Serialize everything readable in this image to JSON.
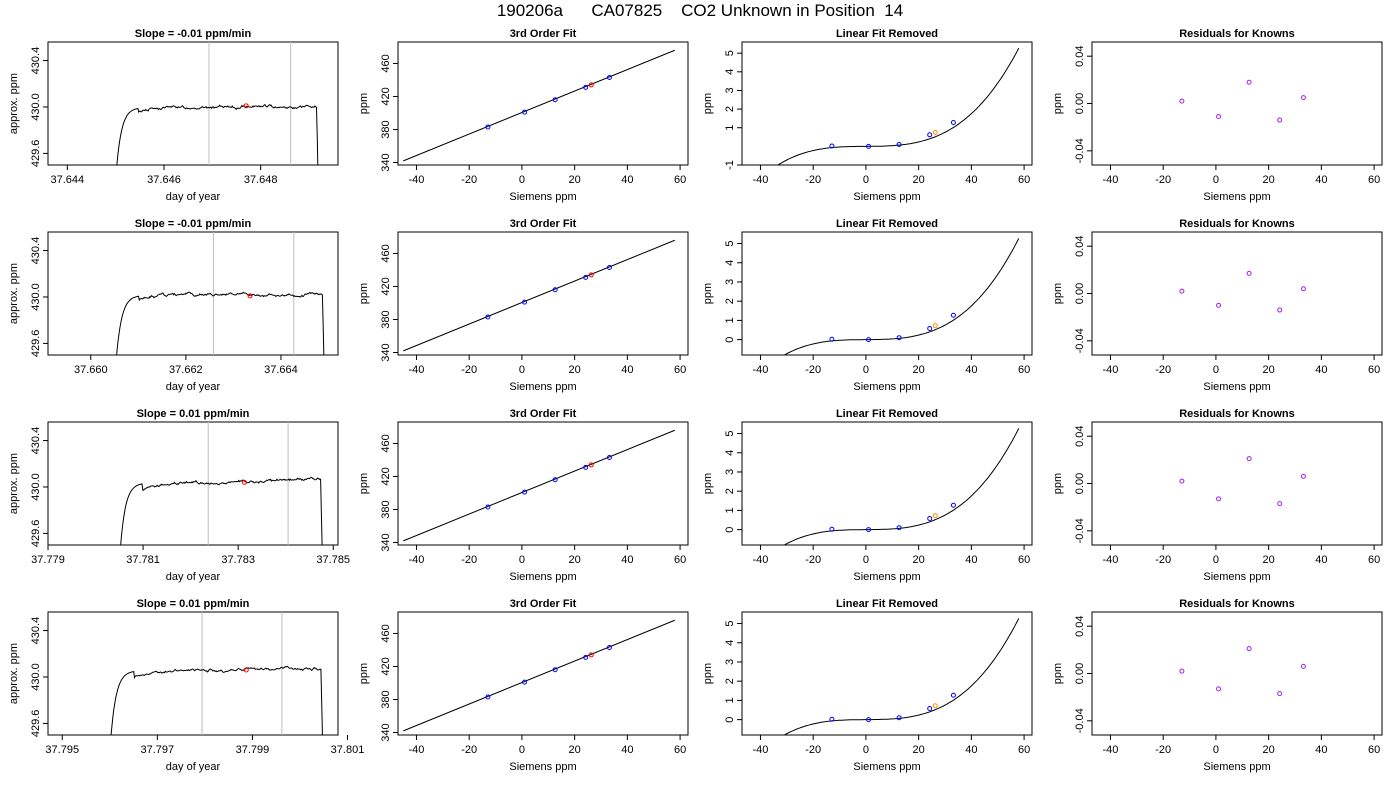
{
  "title": "190206a      CA07825    CO2 Unknown in Position  14",
  "colors": {
    "line": "#000000",
    "vline": "#bebebe",
    "known": "#0000ff",
    "unknown": "#ff0000",
    "fit_unknown": "#ff8c00",
    "residual": "#a020f0"
  },
  "chart_data": [
    {
      "type": "line",
      "row": 0,
      "col": 0,
      "title": "Slope =  -0.01  ppm/min",
      "xlabel": "day of year",
      "ylabel": "approx. ppm",
      "xlim": [
        37.6436,
        37.6496
      ],
      "ylim": [
        429.5,
        430.56
      ],
      "xticks": [
        37.644,
        37.646,
        37.648
      ],
      "xticklabels": [
        "37.644",
        "37.646",
        "37.648"
      ],
      "yticks": [
        429.6,
        430.0,
        430.4
      ],
      "yticklabels": [
        "429.6",
        "430.0",
        "430.4"
      ],
      "trace": {
        "x0": 37.64495,
        "x1": 37.64922,
        "base": 430.0,
        "tilt": 0.0
      },
      "vlines": [
        37.64693,
        37.64862
      ],
      "marker": {
        "x": 37.6477,
        "y": 430.01
      }
    },
    {
      "type": "line",
      "row": 0,
      "col": 1,
      "title": "3rd Order Fit",
      "xlabel": "Siemens ppm",
      "ylabel": "ppm",
      "xlim": [
        -47,
        63
      ],
      "ylim": [
        337,
        486
      ],
      "xticks": [
        -40,
        -20,
        0,
        20,
        40,
        60
      ],
      "xticklabels": [
        "-40",
        "-20",
        "0",
        "20",
        "40",
        "60"
      ],
      "yticks": [
        340,
        380,
        420,
        460
      ],
      "yticklabels": [
        "340",
        "380",
        "420",
        "460"
      ],
      "line": {
        "x0": -45,
        "y0": 342,
        "x1": 58,
        "y1": 476
      },
      "points": [
        {
          "x": -12.9,
          "y": 383
        },
        {
          "x": 1.0,
          "y": 401
        },
        {
          "x": 12.6,
          "y": 416
        },
        {
          "x": 24.2,
          "y": 431
        },
        {
          "x": 33.2,
          "y": 443
        }
      ],
      "unknown": {
        "x": 26.3,
        "y": 434
      }
    },
    {
      "type": "curve",
      "row": 0,
      "col": 2,
      "title": "Linear Fit Removed",
      "xlabel": "Siemens ppm",
      "ylabel": "ppm",
      "xlim": [
        -47,
        63
      ],
      "ylim": [
        -1.0,
        5.6
      ],
      "xticks": [
        -40,
        -20,
        0,
        20,
        40,
        60
      ],
      "xticklabels": [
        "-40",
        "-20",
        "0",
        "20",
        "40",
        "60"
      ],
      "yticks": [
        -1,
        1,
        2,
        3,
        4,
        5
      ],
      "yticklabels": [
        "-1",
        "1",
        "2",
        "3",
        "4",
        "5"
      ],
      "curve": {
        "x0": -43,
        "x1": 58,
        "a": 0.0009,
        "b": 1.42e-05,
        "c": 2.65e-05
      },
      "points": [
        {
          "x": -12.9,
          "y": 0.02
        },
        {
          "x": 1.0,
          "y": 0.0
        },
        {
          "x": 12.6,
          "y": 0.1
        },
        {
          "x": 24.2,
          "y": 0.62
        },
        {
          "x": 33.2,
          "y": 1.28
        }
      ],
      "unknown": {
        "x": 26.3,
        "y": 0.75
      }
    },
    {
      "type": "scatter",
      "row": 0,
      "col": 3,
      "title": "Residuals for Knowns",
      "xlabel": "Siemens ppm",
      "ylabel": "ppm",
      "xlim": [
        -47,
        63
      ],
      "ylim": [
        -0.052,
        0.052
      ],
      "xticks": [
        -40,
        -20,
        0,
        20,
        40,
        60
      ],
      "xticklabels": [
        "-40",
        "-20",
        "0",
        "20",
        "40",
        "60"
      ],
      "yticks": [
        -0.04,
        0.0,
        0.04
      ],
      "yticklabels": [
        "-0.04",
        "0.00",
        "0.04"
      ],
      "points": [
        {
          "x": -12.9,
          "y": 0.002
        },
        {
          "x": 1.0,
          "y": -0.011
        },
        {
          "x": 12.6,
          "y": 0.018
        },
        {
          "x": 24.2,
          "y": -0.014
        },
        {
          "x": 33.2,
          "y": 0.005
        }
      ]
    },
    {
      "type": "line",
      "row": 1,
      "col": 0,
      "title": "Slope =  -0.01  ppm/min",
      "xlabel": "day of year",
      "ylabel": "approx. ppm",
      "xlim": [
        37.6591,
        37.6652
      ],
      "ylim": [
        429.5,
        430.56
      ],
      "xticks": [
        37.66,
        37.662,
        37.664
      ],
      "xticklabels": [
        "37.660",
        "37.662",
        "37.664"
      ],
      "yticks": [
        429.6,
        430.0,
        430.4
      ],
      "yticklabels": [
        "429.6",
        "430.0",
        "430.4"
      ],
      "trace": {
        "x0": 37.66047,
        "x1": 37.66494,
        "base": 430.02,
        "tilt": 0.0
      },
      "vlines": [
        37.66258,
        37.66427
      ],
      "marker": {
        "x": 37.66335,
        "y": 430.01
      }
    },
    {
      "type": "line",
      "row": 1,
      "col": 1,
      "title": "3rd Order Fit",
      "xlabel": "Siemens ppm",
      "ylabel": "ppm",
      "xlim": [
        -47,
        63
      ],
      "ylim": [
        337,
        486
      ],
      "xticks": [
        -40,
        -20,
        0,
        20,
        40,
        60
      ],
      "xticklabels": [
        "-40",
        "-20",
        "0",
        "20",
        "40",
        "60"
      ],
      "yticks": [
        340,
        380,
        420,
        460
      ],
      "yticklabels": [
        "340",
        "380",
        "420",
        "460"
      ],
      "line": {
        "x0": -45,
        "y0": 342,
        "x1": 58,
        "y1": 476
      },
      "points": [
        {
          "x": -12.9,
          "y": 383
        },
        {
          "x": 1.0,
          "y": 401
        },
        {
          "x": 12.6,
          "y": 416
        },
        {
          "x": 24.2,
          "y": 431
        },
        {
          "x": 33.2,
          "y": 443
        }
      ],
      "unknown": {
        "x": 26.3,
        "y": 434
      }
    },
    {
      "type": "curve",
      "row": 1,
      "col": 2,
      "title": "Linear Fit Removed",
      "xlabel": "Siemens ppm",
      "ylabel": "ppm",
      "xlim": [
        -47,
        63
      ],
      "ylim": [
        -0.8,
        5.6
      ],
      "xticks": [
        -40,
        -20,
        0,
        20,
        40,
        60
      ],
      "xticklabels": [
        "-40",
        "-20",
        "0",
        "20",
        "40",
        "60"
      ],
      "yticks": [
        0,
        1,
        2,
        3,
        4,
        5
      ],
      "yticklabels": [
        "0",
        "1",
        "2",
        "3",
        "4",
        "5"
      ],
      "curve": {
        "x0": -43,
        "x1": 58,
        "a": 0.0009,
        "b": 1.42e-05,
        "c": 2.65e-05
      },
      "points": [
        {
          "x": -12.9,
          "y": 0.02
        },
        {
          "x": 1.0,
          "y": 0.0
        },
        {
          "x": 12.6,
          "y": 0.1
        },
        {
          "x": 24.2,
          "y": 0.58
        },
        {
          "x": 33.2,
          "y": 1.27
        }
      ],
      "unknown": {
        "x": 26.3,
        "y": 0.72
      }
    },
    {
      "type": "scatter",
      "row": 1,
      "col": 3,
      "title": "Residuals for Knowns",
      "xlabel": "Siemens ppm",
      "ylabel": "ppm",
      "xlim": [
        -47,
        63
      ],
      "ylim": [
        -0.052,
        0.052
      ],
      "xticks": [
        -40,
        -20,
        0,
        20,
        40,
        60
      ],
      "xticklabels": [
        "-40",
        "-20",
        "0",
        "20",
        "40",
        "60"
      ],
      "yticks": [
        -0.04,
        0.0,
        0.04
      ],
      "yticklabels": [
        "-0.04",
        "0.00",
        "0.04"
      ],
      "points": [
        {
          "x": -12.9,
          "y": 0.002
        },
        {
          "x": 1.0,
          "y": -0.01
        },
        {
          "x": 12.6,
          "y": 0.017
        },
        {
          "x": 24.2,
          "y": -0.014
        },
        {
          "x": 33.2,
          "y": 0.004
        }
      ]
    },
    {
      "type": "line",
      "row": 2,
      "col": 0,
      "title": "Slope =  0.01  ppm/min",
      "xlabel": "day of year",
      "ylabel": "approx. ppm",
      "xlim": [
        37.779,
        37.7851
      ],
      "ylim": [
        429.5,
        430.56
      ],
      "xticks": [
        37.779,
        37.781,
        37.783,
        37.785
      ],
      "xticklabels": [
        "37.779",
        "37.781",
        "37.783",
        "37.785"
      ],
      "yticks": [
        429.6,
        430.0,
        430.4
      ],
      "yticklabels": [
        "429.6",
        "430.0",
        "430.4"
      ],
      "trace": {
        "x0": 37.78046,
        "x1": 37.7848,
        "base": 430.04,
        "tilt": 0.05
      },
      "vlines": [
        37.78237,
        37.78405
      ],
      "marker": {
        "x": 37.78313,
        "y": 430.04
      }
    },
    {
      "type": "line",
      "row": 2,
      "col": 1,
      "title": "3rd Order Fit",
      "xlabel": "Siemens ppm",
      "ylabel": "ppm",
      "xlim": [
        -47,
        63
      ],
      "ylim": [
        337,
        486
      ],
      "xticks": [
        -40,
        -20,
        0,
        20,
        40,
        60
      ],
      "xticklabels": [
        "-40",
        "-20",
        "0",
        "20",
        "40",
        "60"
      ],
      "yticks": [
        340,
        380,
        420,
        460
      ],
      "yticklabels": [
        "340",
        "380",
        "420",
        "460"
      ],
      "line": {
        "x0": -45,
        "y0": 342,
        "x1": 58,
        "y1": 476
      },
      "points": [
        {
          "x": -12.9,
          "y": 383
        },
        {
          "x": 1.0,
          "y": 401
        },
        {
          "x": 12.6,
          "y": 416
        },
        {
          "x": 24.2,
          "y": 431
        },
        {
          "x": 33.2,
          "y": 443
        }
      ],
      "unknown": {
        "x": 26.3,
        "y": 434
      }
    },
    {
      "type": "curve",
      "row": 2,
      "col": 2,
      "title": "Linear Fit Removed",
      "xlabel": "Siemens ppm",
      "ylabel": "ppm",
      "xlim": [
        -47,
        63
      ],
      "ylim": [
        -0.8,
        5.6
      ],
      "xticks": [
        -40,
        -20,
        0,
        20,
        40,
        60
      ],
      "xticklabels": [
        "-40",
        "-20",
        "0",
        "20",
        "40",
        "60"
      ],
      "yticks": [
        0,
        1,
        2,
        3,
        4,
        5
      ],
      "yticklabels": [
        "0",
        "1",
        "2",
        "3",
        "4",
        "5"
      ],
      "curve": {
        "x0": -43,
        "x1": 58,
        "a": 0.0009,
        "b": 1.42e-05,
        "c": 2.65e-05
      },
      "points": [
        {
          "x": -12.9,
          "y": 0.02
        },
        {
          "x": 1.0,
          "y": 0.0
        },
        {
          "x": 12.6,
          "y": 0.1
        },
        {
          "x": 24.2,
          "y": 0.58
        },
        {
          "x": 33.2,
          "y": 1.27
        }
      ],
      "unknown": {
        "x": 26.3,
        "y": 0.72
      }
    },
    {
      "type": "scatter",
      "row": 2,
      "col": 3,
      "title": "Residuals for Knowns",
      "xlabel": "Siemens ppm",
      "ylabel": "ppm",
      "xlim": [
        -47,
        63
      ],
      "ylim": [
        -0.052,
        0.052
      ],
      "xticks": [
        -40,
        -20,
        0,
        20,
        40,
        60
      ],
      "xticklabels": [
        "-40",
        "-20",
        "0",
        "20",
        "40",
        "60"
      ],
      "yticks": [
        -0.04,
        0.0,
        0.04
      ],
      "yticklabels": [
        "-0.04",
        "0.00",
        "0.04"
      ],
      "points": [
        {
          "x": -12.9,
          "y": 0.002
        },
        {
          "x": 1.0,
          "y": -0.013
        },
        {
          "x": 12.6,
          "y": 0.021
        },
        {
          "x": 24.2,
          "y": -0.017
        },
        {
          "x": 33.2,
          "y": 0.006
        }
      ]
    },
    {
      "type": "line",
      "row": 3,
      "col": 0,
      "title": "Slope =  0.01  ppm/min",
      "xlabel": "day of year",
      "ylabel": "approx. ppm",
      "xlim": [
        37.7947,
        37.8008
      ],
      "ylim": [
        429.5,
        430.56
      ],
      "xticks": [
        37.795,
        37.797,
        37.799,
        37.801
      ],
      "xticklabels": [
        "37.795",
        "37.797",
        "37.799",
        "37.801"
      ],
      "yticks": [
        429.6,
        430.0,
        430.4
      ],
      "yticklabels": [
        "429.6",
        "430.0",
        "430.4"
      ],
      "trace": {
        "x0": 37.79596,
        "x1": 37.80051,
        "base": 430.06,
        "tilt": 0.04
      },
      "vlines": [
        37.79794,
        37.79962
      ],
      "marker": {
        "x": 37.79887,
        "y": 430.06
      }
    },
    {
      "type": "line",
      "row": 3,
      "col": 1,
      "title": "3rd Order Fit",
      "xlabel": "Siemens ppm",
      "ylabel": "ppm",
      "xlim": [
        -47,
        63
      ],
      "ylim": [
        337,
        486
      ],
      "xticks": [
        -40,
        -20,
        0,
        20,
        40,
        60
      ],
      "xticklabels": [
        "-40",
        "-20",
        "0",
        "20",
        "40",
        "60"
      ],
      "yticks": [
        340,
        380,
        420,
        460
      ],
      "yticklabels": [
        "340",
        "380",
        "420",
        "460"
      ],
      "line": {
        "x0": -45,
        "y0": 342,
        "x1": 58,
        "y1": 476
      },
      "points": [
        {
          "x": -12.9,
          "y": 383
        },
        {
          "x": 1.0,
          "y": 401
        },
        {
          "x": 12.6,
          "y": 416
        },
        {
          "x": 24.2,
          "y": 431
        },
        {
          "x": 33.2,
          "y": 443
        }
      ],
      "unknown": {
        "x": 26.3,
        "y": 434
      }
    },
    {
      "type": "curve",
      "row": 3,
      "col": 2,
      "title": "Linear Fit Removed",
      "xlabel": "Siemens ppm",
      "ylabel": "ppm",
      "xlim": [
        -47,
        63
      ],
      "ylim": [
        -0.8,
        5.6
      ],
      "xticks": [
        -40,
        -20,
        0,
        20,
        40,
        60
      ],
      "xticklabels": [
        "-40",
        "-20",
        "0",
        "20",
        "40",
        "60"
      ],
      "yticks": [
        0,
        1,
        2,
        3,
        4,
        5
      ],
      "yticklabels": [
        "0",
        "1",
        "2",
        "3",
        "4",
        "5"
      ],
      "curve": {
        "x0": -43,
        "x1": 58,
        "a": 0.0009,
        "b": 1.42e-05,
        "c": 2.65e-05
      },
      "points": [
        {
          "x": -12.9,
          "y": 0.02
        },
        {
          "x": 1.0,
          "y": 0.0
        },
        {
          "x": 12.6,
          "y": 0.1
        },
        {
          "x": 24.2,
          "y": 0.58
        },
        {
          "x": 33.2,
          "y": 1.27
        }
      ],
      "unknown": {
        "x": 26.3,
        "y": 0.72
      }
    },
    {
      "type": "scatter",
      "row": 3,
      "col": 3,
      "title": "Residuals for Knowns",
      "xlabel": "Siemens ppm",
      "ylabel": "ppm",
      "xlim": [
        -47,
        63
      ],
      "ylim": [
        -0.052,
        0.052
      ],
      "xticks": [
        -40,
        -20,
        0,
        20,
        40,
        60
      ],
      "xticklabels": [
        "-40",
        "-20",
        "0",
        "20",
        "40",
        "60"
      ],
      "yticks": [
        -0.04,
        0.0,
        0.04
      ],
      "yticklabels": [
        "-0.04",
        "0.00",
        "0.04"
      ],
      "points": [
        {
          "x": -12.9,
          "y": 0.002
        },
        {
          "x": 1.0,
          "y": -0.013
        },
        {
          "x": 12.6,
          "y": 0.021
        },
        {
          "x": 24.2,
          "y": -0.017
        },
        {
          "x": 33.2,
          "y": 0.006
        }
      ]
    }
  ]
}
